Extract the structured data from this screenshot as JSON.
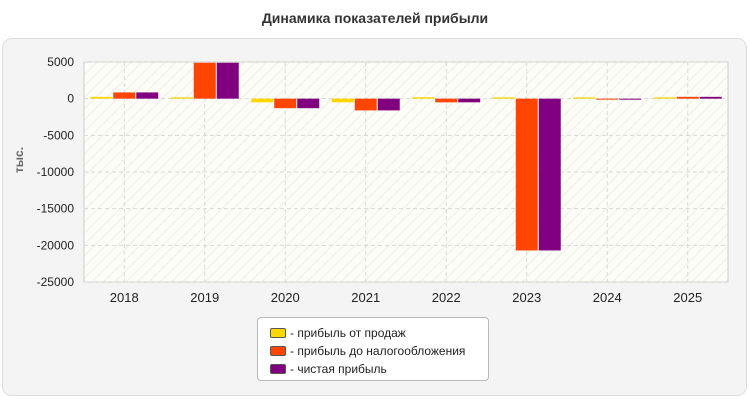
{
  "chart_data": {
    "type": "bar",
    "title": "Динамика показателей прибыли",
    "xlabel": "",
    "ylabel": "тыс.",
    "ylim": [
      -25000,
      5000
    ],
    "yticks": [
      5000,
      0,
      -5000,
      -10000,
      -15000,
      -20000,
      -25000
    ],
    "categories": [
      "2018",
      "2019",
      "2020",
      "2021",
      "2022",
      "2023",
      "2024",
      "2025"
    ],
    "series": [
      {
        "name": "- прибыль от продаж",
        "color": "#ffd700",
        "values": [
          250,
          180,
          -500,
          -500,
          200,
          180,
          180,
          180
        ]
      },
      {
        "name": "- прибыль до налогообложения",
        "color": "#ff4500",
        "values": [
          850,
          4900,
          -1300,
          -1600,
          -500,
          -20700,
          -100,
          250
        ]
      },
      {
        "name": "- чистая прибыль",
        "color": "#800080",
        "values": [
          850,
          4900,
          -1300,
          -1600,
          -500,
          -20700,
          -100,
          250
        ]
      }
    ],
    "grid": true,
    "legend_position": "bottom-center"
  }
}
